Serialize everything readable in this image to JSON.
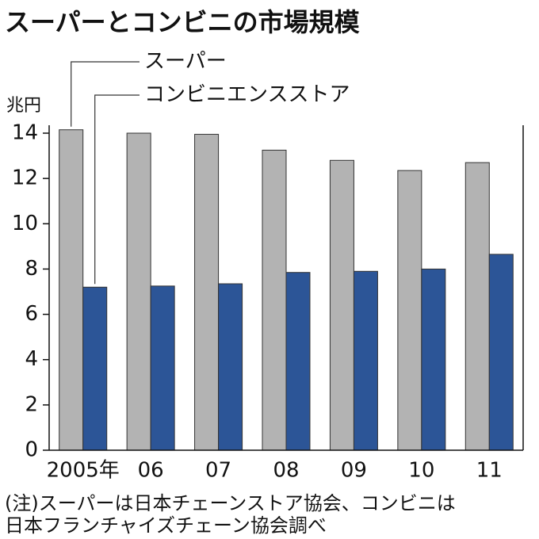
{
  "chart_data": {
    "type": "bar",
    "title": "スーパーとコンビニの市場規模",
    "y_unit": "兆円",
    "categories": [
      "2005年",
      "06",
      "07",
      "08",
      "09",
      "10",
      "11"
    ],
    "series": [
      {
        "name": "スーパー",
        "color": "#b3b3b3",
        "values": [
          14.15,
          14.0,
          13.95,
          13.25,
          12.8,
          12.35,
          12.7
        ]
      },
      {
        "name": "コンビニエンスストア",
        "color": "#2c5597",
        "values": [
          7.2,
          7.25,
          7.35,
          7.85,
          7.9,
          8.0,
          8.65
        ]
      }
    ],
    "ylim": [
      0,
      14
    ],
    "yticks": [
      0,
      2,
      4,
      6,
      8,
      10,
      12,
      14
    ],
    "grid": false,
    "notes": [
      "(注)スーパーは日本チェーンストア協会、コンビニは",
      "日本フランチャイズチェーン協会調べ"
    ]
  }
}
